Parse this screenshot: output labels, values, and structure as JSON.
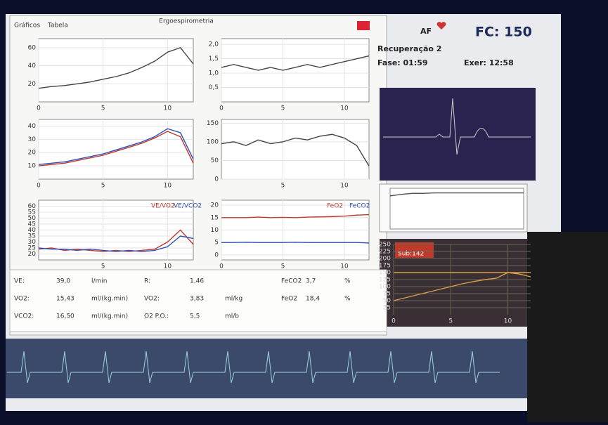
{
  "window": {
    "tabs": [
      "Gráficos",
      "Tabela"
    ],
    "title": "Ergoespirometria"
  },
  "status": {
    "af": "AF",
    "hr": "FC: 150",
    "phase": "Recuperação 2",
    "phase_time": "Fase: 01:59",
    "exercise_time": "Exer: 12:58",
    "sub": "Sub:142"
  },
  "charts": [
    {
      "x": [
        0,
        1,
        2,
        3,
        4,
        5,
        6,
        7,
        8,
        9,
        10,
        11,
        12
      ],
      "xlim": [
        0,
        12
      ],
      "xticks": [
        0,
        5,
        10
      ],
      "ylim": [
        0,
        70
      ],
      "yticks": [
        20,
        40,
        60
      ],
      "series": [
        {
          "color": "#444444",
          "values": [
            15,
            17,
            18,
            20,
            22,
            25,
            28,
            32,
            38,
            45,
            55,
            60,
            42
          ]
        }
      ]
    },
    {
      "x": [
        0,
        1,
        2,
        3,
        4,
        5,
        6,
        7,
        8,
        9,
        10,
        11,
        12
      ],
      "xlim": [
        0,
        12
      ],
      "xticks": [
        0,
        5,
        10
      ],
      "ylim": [
        0,
        2.2
      ],
      "yticks": [
        {
          "value": 0.5,
          "label": "0,5"
        },
        {
          "value": 1,
          "label": "1,0"
        },
        {
          "value": 1.5,
          "label": "1,5"
        },
        {
          "value": 2,
          "label": "2,0"
        }
      ],
      "series": [
        {
          "color": "#444444",
          "values": [
            1.2,
            1.3,
            1.2,
            1.1,
            1.2,
            1.1,
            1.2,
            1.3,
            1.2,
            1.3,
            1.4,
            1.5,
            1.6
          ]
        }
      ]
    },
    {
      "x": [
        0,
        1,
        2,
        3,
        4,
        5,
        6,
        7,
        8,
        9,
        10,
        11,
        12
      ],
      "xlim": [
        0,
        12
      ],
      "xticks": [
        0,
        5,
        10
      ],
      "ylim": [
        0,
        45
      ],
      "yticks": [
        10,
        20,
        30,
        40
      ],
      "series": [
        {
          "color": "#c0392b",
          "values": [
            10,
            11,
            12,
            14,
            16,
            18,
            21,
            24,
            27,
            31,
            36,
            32,
            12
          ]
        },
        {
          "color": "#2e4fb8",
          "values": [
            11,
            12,
            13,
            15,
            17,
            19,
            22,
            25,
            28,
            32,
            38,
            35,
            15
          ]
        }
      ]
    },
    {
      "x": [
        0,
        1,
        2,
        3,
        4,
        5,
        6,
        7,
        8,
        9,
        10,
        11,
        12
      ],
      "xlim": [
        0,
        12
      ],
      "xticks": [
        5,
        10
      ],
      "ylim": [
        0,
        160
      ],
      "yticks": [
        0,
        50,
        100,
        150
      ],
      "series": [
        {
          "color": "#444444",
          "values": [
            95,
            100,
            90,
            105,
            95,
            100,
            110,
            105,
            115,
            120,
            110,
            90,
            35
          ]
        }
      ]
    },
    {
      "x": [
        0,
        1,
        2,
        3,
        4,
        5,
        6,
        7,
        8,
        9,
        10,
        11,
        12
      ],
      "xlim": [
        0,
        12
      ],
      "xticks": [
        5,
        10
      ],
      "ylim": [
        15,
        65
      ],
      "yticks": [
        20,
        25,
        30,
        35,
        40,
        45,
        50,
        55,
        60
      ],
      "series": [
        {
          "name": "VE/VO2",
          "color": "#c0392b",
          "values": [
            24,
            25,
            23,
            24,
            23,
            22,
            23,
            22,
            23,
            24,
            30,
            40,
            28
          ]
        },
        {
          "name": "VE/VCO2",
          "color": "#2e4fb8",
          "values": [
            25,
            24,
            24,
            23,
            24,
            23,
            22,
            23,
            22,
            23,
            26,
            35,
            33
          ]
        }
      ]
    },
    {
      "x": [
        0,
        1,
        2,
        3,
        4,
        5,
        6,
        7,
        8,
        9,
        10,
        11,
        12
      ],
      "xlim": [
        0,
        12
      ],
      "xticks": [
        0,
        5,
        10
      ],
      "ylim": [
        -2,
        22
      ],
      "yticks": [
        0,
        5,
        10,
        15,
        20
      ],
      "series": [
        {
          "name": "FeO2",
          "color": "#c0392b",
          "values": [
            15,
            15,
            15,
            15.2,
            15,
            15.1,
            15,
            15.2,
            15.3,
            15.4,
            15.6,
            16,
            16.2
          ]
        },
        {
          "name": "FeCO2",
          "color": "#2e4fb8",
          "values": [
            5,
            5,
            5.1,
            5,
            5,
            5,
            5.1,
            5,
            5,
            5,
            5,
            5,
            4.8
          ]
        }
      ]
    },
    {
      "x": [
        0,
        1,
        2,
        3,
        4,
        5,
        6,
        7,
        8,
        9,
        10,
        11,
        12
      ],
      "xlim": [
        0,
        12
      ],
      "ylim": [
        0,
        8
      ],
      "series": [
        {
          "color": "#555555",
          "values": [
            6.5,
            6.8,
            7,
            7,
            7.1,
            7.1,
            7.1,
            7.1,
            7.1,
            7.1,
            7.1,
            7.1,
            7.1
          ]
        }
      ]
    },
    {
      "x": [
        0,
        1,
        2,
        3,
        4,
        5,
        6,
        7,
        8,
        9,
        10,
        11,
        12
      ],
      "xlim": [
        0,
        12
      ],
      "xticks": [
        0,
        5,
        10
      ],
      "ylim": [
        0,
        250
      ],
      "yticks": [
        25,
        50,
        75,
        100,
        125,
        150,
        175,
        200,
        225,
        250
      ],
      "series": [
        {
          "color": "#d9a04a",
          "values": [
            50,
            60,
            70,
            80,
            90,
            100,
            110,
            118,
            125,
            130,
            150,
            145,
            135
          ]
        },
        {
          "color": "#d9a04a",
          "values": [
            150,
            150,
            150,
            150,
            150,
            150,
            150,
            150,
            150,
            150,
            150,
            150,
            150
          ]
        }
      ]
    }
  ],
  "table": {
    "rows": [
      [
        "VE:",
        "39,0",
        "l/min",
        "R:",
        "1,46",
        "",
        "FeCO2",
        "3,7",
        "%"
      ],
      [
        "VO2:",
        "15,43",
        "ml/(kg.min)",
        "VO2:",
        "3,83",
        "ml/kg",
        "FeO2",
        "18,4",
        "%"
      ],
      [
        "VCO2:",
        "16,50",
        "ml/(kg.min)",
        "O2 P.O.:",
        "5,5",
        "ml/b",
        "",
        "",
        ""
      ]
    ]
  }
}
